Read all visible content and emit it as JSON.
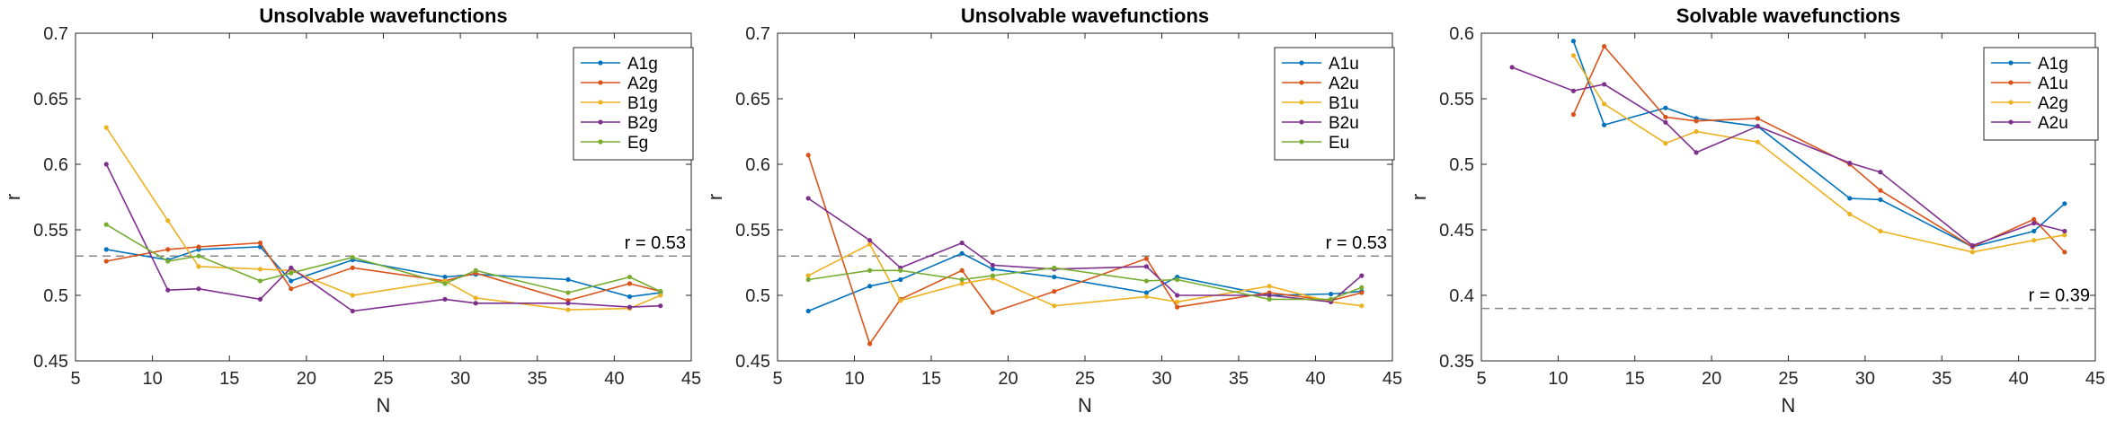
{
  "chart_data": [
    {
      "type": "line",
      "title": "Unsolvable wavefunctions",
      "xlabel": "N",
      "ylabel": "r",
      "xlim": [
        5,
        45
      ],
      "ylim": [
        0.45,
        0.7
      ],
      "xticks": [
        "5",
        "10",
        "15",
        "20",
        "25",
        "30",
        "35",
        "40",
        "45"
      ],
      "yticks": [
        "0.45",
        "0.5",
        "0.55",
        "0.6",
        "0.65",
        "0.7"
      ],
      "legend_position": "top-right",
      "reference_line": {
        "y": 0.53,
        "label": "r = 0.53"
      },
      "x": [
        7,
        11,
        13,
        17,
        19,
        23,
        29,
        31,
        37,
        41,
        43
      ],
      "series": [
        {
          "name": "A1g",
          "color": "#0072BD",
          "values": [
            0.535,
            0.527,
            0.535,
            0.537,
            0.511,
            0.527,
            0.514,
            0.516,
            0.512,
            0.499,
            0.502
          ]
        },
        {
          "name": "A2g",
          "color": "#D95319",
          "values": [
            0.526,
            0.535,
            0.537,
            0.54,
            0.505,
            0.521,
            0.511,
            0.517,
            0.496,
            0.509,
            0.503
          ]
        },
        {
          "name": "B1g",
          "color": "#EDB120",
          "values": [
            0.628,
            0.557,
            0.522,
            0.52,
            0.519,
            0.5,
            0.511,
            0.498,
            0.489,
            0.49,
            0.5
          ]
        },
        {
          "name": "B2g",
          "color": "#7E2F8E",
          "values": [
            0.6,
            0.504,
            0.505,
            0.497,
            0.521,
            0.488,
            0.497,
            0.494,
            0.494,
            0.491,
            0.492
          ]
        },
        {
          "name": "Eg",
          "color": "#77AC30",
          "values": [
            0.554,
            0.526,
            0.53,
            0.511,
            0.517,
            0.529,
            0.509,
            0.519,
            0.502,
            0.514,
            0.503
          ]
        }
      ]
    },
    {
      "type": "line",
      "title": "Unsolvable wavefunctions",
      "xlabel": "N",
      "ylabel": "r",
      "xlim": [
        5,
        45
      ],
      "ylim": [
        0.45,
        0.7
      ],
      "xticks": [
        "5",
        "10",
        "15",
        "20",
        "25",
        "30",
        "35",
        "40",
        "45"
      ],
      "yticks": [
        "0.45",
        "0.5",
        "0.55",
        "0.6",
        "0.65",
        "0.7"
      ],
      "legend_position": "top-right",
      "reference_line": {
        "y": 0.53,
        "label": "r = 0.53"
      },
      "x": [
        7,
        11,
        13,
        17,
        19,
        23,
        29,
        31,
        37,
        41,
        43
      ],
      "series": [
        {
          "name": "A1u",
          "color": "#0072BD",
          "values": [
            0.488,
            0.507,
            0.512,
            0.532,
            0.52,
            0.514,
            0.502,
            0.514,
            0.5,
            0.501,
            0.503
          ]
        },
        {
          "name": "A2u",
          "color": "#D95319",
          "values": [
            0.607,
            0.463,
            0.497,
            0.519,
            0.487,
            0.503,
            0.528,
            0.491,
            0.502,
            0.496,
            0.502
          ]
        },
        {
          "name": "B1u",
          "color": "#EDB120",
          "values": [
            0.515,
            0.539,
            0.496,
            0.509,
            0.513,
            0.492,
            0.499,
            0.495,
            0.507,
            0.495,
            0.492
          ]
        },
        {
          "name": "B2u",
          "color": "#7E2F8E",
          "values": [
            0.574,
            0.542,
            0.521,
            0.54,
            0.523,
            0.52,
            0.522,
            0.5,
            0.5,
            0.495,
            0.515
          ]
        },
        {
          "name": "Eu",
          "color": "#77AC30",
          "values": [
            0.512,
            0.519,
            0.519,
            0.512,
            0.515,
            0.521,
            0.511,
            0.512,
            0.497,
            0.497,
            0.506
          ]
        }
      ]
    },
    {
      "type": "line",
      "title": "Solvable wavefunctions",
      "xlabel": "N",
      "ylabel": "r",
      "xlim": [
        5,
        45
      ],
      "ylim": [
        0.35,
        0.6
      ],
      "xticks": [
        "5",
        "10",
        "15",
        "20",
        "25",
        "30",
        "35",
        "40",
        "45"
      ],
      "yticks": [
        "0.35",
        "0.4",
        "0.45",
        "0.5",
        "0.55",
        "0.6"
      ],
      "legend_position": "top-right",
      "reference_line": {
        "y": 0.39,
        "label": "r = 0.39"
      },
      "x": [
        7,
        11,
        13,
        17,
        19,
        23,
        29,
        31,
        37,
        41,
        43
      ],
      "series": [
        {
          "name": "A1g",
          "color": "#0072BD",
          "x": [
            11,
            13,
            17,
            19,
            23,
            29,
            31,
            37,
            41,
            43
          ],
          "values": [
            0.594,
            0.53,
            0.543,
            0.535,
            0.529,
            0.474,
            0.473,
            0.437,
            0.449,
            0.47
          ]
        },
        {
          "name": "A1u",
          "color": "#D95319",
          "x": [
            11,
            13,
            17,
            19,
            23,
            29,
            31,
            37,
            41,
            43
          ],
          "values": [
            0.538,
            0.59,
            0.536,
            0.533,
            0.535,
            0.5,
            0.48,
            0.437,
            0.458,
            0.433
          ]
        },
        {
          "name": "A2g",
          "color": "#EDB120",
          "x": [
            11,
            13,
            17,
            19,
            23,
            29,
            31,
            37,
            41,
            43
          ],
          "values": [
            0.583,
            0.546,
            0.516,
            0.525,
            0.517,
            0.462,
            0.449,
            0.433,
            0.442,
            0.446
          ]
        },
        {
          "name": "A2u",
          "color": "#7E2F8E",
          "x": [
            7,
            11,
            13,
            17,
            19,
            23,
            29,
            31,
            37,
            41,
            43
          ],
          "values": [
            0.574,
            0.556,
            0.561,
            0.532,
            0.509,
            0.529,
            0.501,
            0.494,
            0.438,
            0.455,
            0.449
          ]
        }
      ]
    }
  ]
}
